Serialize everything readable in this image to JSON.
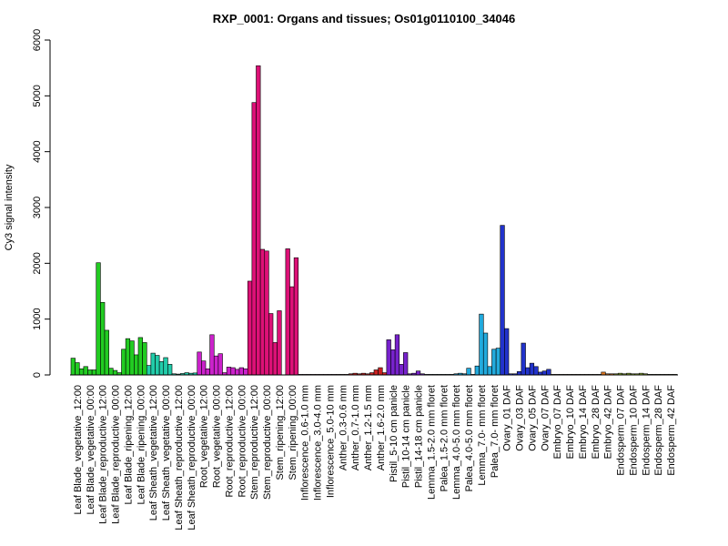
{
  "chart_data": {
    "type": "bar",
    "title": "RXP_0001: Organs and tissues; Os01g0110100_34046",
    "xlabel": "",
    "ylabel": "Cy3 signal intensity",
    "ylim": [
      0,
      6000
    ],
    "yticks": [
      0,
      1000,
      2000,
      3000,
      4000,
      5000,
      6000
    ],
    "grid": false,
    "legend": "none",
    "categories": [
      "Leaf Blade_vegetative_12:00",
      "Leaf Blade_vegetative_00:00",
      "Leaf Blade_reproductive_12:00",
      "Leaf Blade_reproductive_00:00",
      "Leaf Blade_ripening_12:00",
      "Leaf Blade_ripening_00:00",
      "Leaf Sheath_vegetative_12:00",
      "Leaf Sheath_vegetative_00:00",
      "Leaf Sheath_reproductive_12:00",
      "Leaf Sheath_reproductive_00:00",
      "Root_vegetative_12:00",
      "Root_vegetative_00:00",
      "Root_reproductive_12:00",
      "Root_reproductive_00:00",
      "Stem_reproductive_12:00",
      "Stem_reproductive_00:00",
      "Stem_ripening_12:00",
      "Stem_ripening_00:00",
      "Inflorescence_0.6-1.0 mm",
      "Inflorescence_3.0-4.0 mm",
      "Inflorescence_5.0-10 mm",
      "Anther_0.3-0.6 mm",
      "Anther_0.7-1.0 mm",
      "Anther_1.2-1.5 mm",
      "Anther_1.6-2.0 mm",
      "Pistil_5-10 cm panicle",
      "Pistil_10-14 cm panicle",
      "Pistil_14-18 cm panicle",
      "Lemma_1.5-2.0 mm floret",
      "Palea_1.5-2.0 mm floret",
      "Lemma_4.0-5.0 mm floret",
      "Palea_4.0-5.0 mm floret",
      "Lemma_7.0- mm floret",
      "Palea_7.0- mm floret",
      "Ovary_01 DAF",
      "Ovary_03 DAF",
      "Ovary_05 DAF",
      "Ovary_07 DAF",
      "Embryo_07 DAF",
      "Embryo_10 DAF",
      "Embryo_14 DAF",
      "Embryo_28 DAF",
      "Embryo_42 DAF",
      "Endosperm_07 DAF",
      "Endosperm_10 DAF",
      "Endosperm_14 DAF",
      "Endosperm_28 DAF",
      "Endosperm_42 DAF"
    ],
    "category_colors": [
      "#22cc22",
      "#22cc22",
      "#22cc22",
      "#22cc22",
      "#22cc22",
      "#22cc22",
      "#22ccaa",
      "#22ccaa",
      "#22ccaa",
      "#22ccaa",
      "#cc22cc",
      "#cc22cc",
      "#cc22cc",
      "#cc22cc",
      "#dd1177",
      "#dd1177",
      "#dd1177",
      "#dd1177",
      "#dd1177",
      "#dd1177",
      "#dd1177",
      "#cc2222",
      "#cc2222",
      "#cc2222",
      "#cc2222",
      "#7722cc",
      "#7722cc",
      "#7722cc",
      "#22aadd",
      "#22aadd",
      "#22aadd",
      "#22aadd",
      "#22aadd",
      "#22aadd",
      "#2233cc",
      "#2233cc",
      "#2233cc",
      "#2233cc",
      "#dd7722",
      "#dd7722",
      "#dd7722",
      "#dd7722",
      "#dd7722",
      "#88aa33",
      "#88aa33",
      "#88aa33",
      "#88aa33",
      "#88aa33"
    ],
    "values": [
      [
        300,
        220,
        110
      ],
      [
        150,
        90,
        90
      ],
      [
        2010,
        1300,
        800
      ],
      [
        120,
        80,
        40
      ],
      [
        460,
        650,
        610
      ],
      [
        360,
        670,
        580
      ],
      [
        170,
        390,
        350
      ],
      [
        240,
        310,
        190
      ],
      [
        20,
        15,
        25
      ],
      [
        40,
        30,
        35
      ],
      [
        410,
        250,
        110
      ],
      [
        720,
        340,
        380
      ],
      [
        40,
        140,
        130
      ],
      [
        100,
        130,
        110
      ],
      [
        1680,
        4880,
        5540
      ],
      [
        2250,
        2220,
        1100
      ],
      [
        580,
        1150,
        0
      ],
      [
        2260,
        1580,
        2100
      ],
      [
        10,
        10,
        10
      ],
      [
        10,
        10,
        10
      ],
      [
        10,
        10,
        10
      ],
      [
        10,
        10,
        10
      ],
      [
        20,
        30,
        20
      ],
      [
        30,
        20,
        40
      ],
      [
        90,
        130,
        40
      ],
      [
        630,
        450,
        720
      ],
      [
        190,
        400,
        20
      ],
      [
        30,
        70,
        20
      ],
      [
        10,
        10,
        10
      ],
      [
        10,
        10,
        10
      ],
      [
        10,
        20,
        30
      ],
      [
        20,
        120,
        10
      ],
      [
        160,
        1090,
        750
      ],
      [
        150,
        460,
        480
      ],
      [
        2680,
        830,
        20
      ],
      [
        20,
        60,
        570
      ],
      [
        130,
        210,
        150
      ],
      [
        50,
        70,
        100
      ],
      [
        10,
        10,
        10
      ],
      [
        10,
        10,
        10
      ],
      [
        10,
        10,
        10
      ],
      [
        10,
        10,
        10
      ],
      [
        50,
        20,
        20
      ],
      [
        20,
        30,
        20
      ],
      [
        30,
        20,
        20
      ],
      [
        30,
        20,
        10
      ],
      [
        10,
        10,
        10
      ],
      [
        10,
        10,
        10
      ]
    ]
  }
}
